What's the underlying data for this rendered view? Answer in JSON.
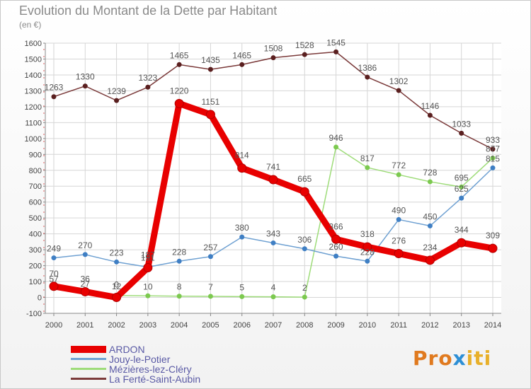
{
  "chart_data": {
    "type": "line",
    "title": "Evolution du Montant de la Dette par Habitant",
    "subtitle": "(en €)",
    "x": [
      "2000",
      "2001",
      "2002",
      "2003",
      "2004",
      "2005",
      "2006",
      "2007",
      "2008",
      "2009",
      "2010",
      "2011",
      "2012",
      "2013",
      "2014"
    ],
    "ylim": [
      -100,
      1600
    ],
    "yticks": [
      -100,
      0,
      100,
      200,
      300,
      400,
      500,
      600,
      700,
      800,
      900,
      1000,
      1100,
      1200,
      1300,
      1400,
      1500,
      1600
    ],
    "grid": true,
    "legend_position": "bottom-left",
    "series": [
      {
        "name": "ARDON",
        "color": "#e80000",
        "values": [
          70,
          36,
          0,
          187,
          1220,
          1151,
          814,
          741,
          665,
          366,
          318,
          276,
          234,
          344,
          309
        ]
      },
      {
        "name": "Jouy-le-Potier",
        "color": "#6fa1d2",
        "values": [
          249,
          270,
          223,
          191,
          228,
          257,
          380,
          343,
          306,
          260,
          228,
          490,
          450,
          625,
          815
        ]
      },
      {
        "name": "Mézières-lez-Cléry",
        "color": "#9edc79",
        "values": [
          57,
          27,
          12,
          10,
          8,
          7,
          5,
          4,
          2,
          946,
          817,
          772,
          728,
          695,
          877
        ]
      },
      {
        "name": "La Ferté-Saint-Aubin",
        "color": "#7b3a3a",
        "values": [
          1263,
          1330,
          1239,
          1323,
          1465,
          1435,
          1465,
          1508,
          1528,
          1545,
          1386,
          1302,
          1146,
          1033,
          933
        ]
      }
    ]
  },
  "brand": {
    "part1": "Pro",
    "part2": "x",
    "part3": "iti"
  }
}
